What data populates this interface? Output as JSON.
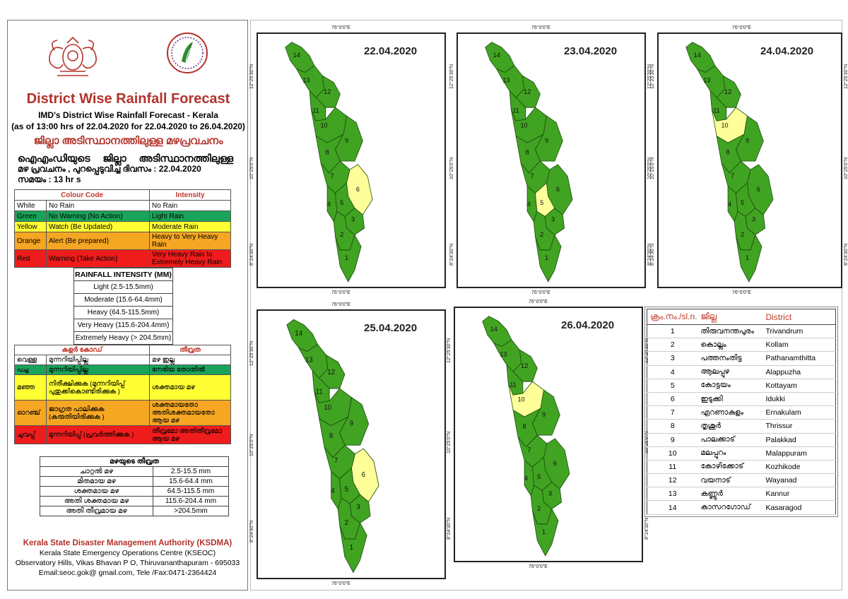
{
  "header": {
    "title": "District Wise Rainfall Forecast",
    "subtitle_line1": "IMD's District Wise Rainfall Forecast - Kerala",
    "subtitle_line2": "(as of 13:00 hrs of 22.04.2020  for 22.04.2020  to 26.04.2020)",
    "title_ml": "ജില്ലാ അടിസ്ഥാനത്തിലുള്ള മഴപ്രവചനം",
    "issued_line1": "ഐഎംഡിയുടെ ജില്ലാ അടിസ്ഥാനത്തിലുള്ള",
    "issued_line2": "മഴ പ്രവചനം ,  പുറപ്പെടുവിച്ച   ദിവസം : 22.04.2020",
    "issued_line3": "സമയം :  13   hr s"
  },
  "colour_code": {
    "header_code": "Colour Code",
    "header_intensity": "Intensity",
    "rows": [
      {
        "colour": "White",
        "code": "No Rain",
        "intensity": "No Rain",
        "bg": "#ffffff"
      },
      {
        "colour": "Green",
        "code": "No Warning (No Action)",
        "intensity": "Light Rain",
        "bg": "#1aa35a"
      },
      {
        "colour": "Yellow",
        "code": "Watch (Be Updated)",
        "intensity": "Moderate Rain",
        "bg": "#ffff33"
      },
      {
        "colour": "Orange",
        "code": "Alert (Be prepared)",
        "intensity": "Heavy to Very Heavy Rain",
        "bg": "#f5a623"
      },
      {
        "colour": "Red",
        "code": "Warning (Take Action)",
        "intensity": "Very Heavy Rain to Extremely Heavy Rain",
        "bg": "#ee1c1c"
      }
    ]
  },
  "rainfall_intensity": {
    "header": "RAINFALL INTENSITY (MM)",
    "rows": [
      "Light (2.5-15.5mm)",
      "Moderate (15.6-64.4mm)",
      "Heavy (64.5-115.5mm)",
      "Very Heavy (115.6-204.4mm)",
      "Extremely Heavy (> 204.5mm)"
    ]
  },
  "colour_code_ml": {
    "header_code": "കളർ കോഡ്",
    "header_intensity": "തീവ്രത",
    "rows": [
      {
        "colour": "വെള്ള",
        "code": "മുന്നറിയിപ്പില്ല",
        "intensity": "മഴ ഇല്ല",
        "bg": "#ffffff"
      },
      {
        "colour": "പച്ച",
        "code": "മുന്നറിയിപ്പില്ല",
        "intensity": "നേരിയ തോതിൽ",
        "bg": "#1aa35a"
      },
      {
        "colour": "മഞ്ഞ",
        "code": "നിരീക്ഷിക്കുക (മുന്നറിയിപ്പ് പുതുക്കികൊണ്ടിരിക്കുക )",
        "intensity": "ശക്തമായ മഴ",
        "bg": "#ffff33"
      },
      {
        "colour": "ഓറഞ്ച്",
        "code": "ജാഗ്രത പാലിക്കുക (കരുതിയിരിക്കുക )",
        "intensity": "ശക്തമായതോ അതിശക്തമായതോ ആയ മഴ",
        "bg": "#f5a623"
      },
      {
        "colour": "ചുവപ്പ്",
        "code": "മുന്നറിയിപ്പ് (പ്രവർത്തിക്കുക )",
        "intensity": "തീവ്രമോ അതിതീവ്രമോ ആയ മഴ",
        "bg": "#ee1c1c"
      }
    ]
  },
  "rainfall_intensity_ml": {
    "header": "മഴയുടെ തീവ്രത",
    "rows": [
      {
        "label": "ചാറ്റൽ മഴ",
        "value": "2.5-15.5 mm"
      },
      {
        "label": "മിതമായ മഴ",
        "value": "15.6-64.4 mm"
      },
      {
        "label": "ശക്തമായ മഴ",
        "value": "64.5-115.5 mm"
      },
      {
        "label": "അതി ശക്തമായ മഴ",
        "value": "115.6-204.4 mm"
      },
      {
        "label": "അതി തീവ്രമായ മഴ",
        "value": ">204.5mm"
      }
    ]
  },
  "footer": {
    "org": "Kerala State Disaster Management Authority (KSDMA)",
    "line2": "Kerala State Emergency Operations Centre (KSEOC)",
    "line3": "Observatory Hills, Vikas Bhavan P O, Thiruvananthapuram - 695033",
    "line4": "Email:seoc.gok@ gmail.com, Tele /Fax:0471-2364424"
  },
  "map_labels": {
    "lon": "76°0'0\"E",
    "lat_n": "12°25'30\"N",
    "lat_m": "10°25'0\"N",
    "lat_s": "8°24'30\"N"
  },
  "maps": [
    {
      "date": "22.04.2020",
      "yellow_districts": [
        6
      ]
    },
    {
      "date": "23.04.2020",
      "yellow_districts": [
        5
      ]
    },
    {
      "date": "24.04.2020",
      "yellow_districts": [
        10
      ]
    },
    {
      "date": "25.04.2020",
      "yellow_districts": [
        6
      ]
    },
    {
      "date": "26.04.2020",
      "yellow_districts": [
        10
      ]
    }
  ],
  "colors": {
    "green": "#41a322",
    "yellow": "#ffff9a",
    "border": "#1b4d0f"
  },
  "district_table": {
    "header_no": "ക്രം.നം./sl.n.",
    "header_ml": "ജില്ല",
    "header_en": "District",
    "rows": [
      {
        "no": "1",
        "ml": "തിരുവനന്തപുരം",
        "en": "Trivandrum"
      },
      {
        "no": "2",
        "ml": "കൊല്ലം",
        "en": "Kollam"
      },
      {
        "no": "3",
        "ml": "പത്തനംതിട്ട",
        "en": "Pathanamthitta"
      },
      {
        "no": "4",
        "ml": "ആലപ്പുഴ",
        "en": "Alappuzha"
      },
      {
        "no": "5",
        "ml": "കോട്ടയം",
        "en": "Kottayam"
      },
      {
        "no": "6",
        "ml": "ഇടുക്കി",
        "en": "Idukki"
      },
      {
        "no": "7",
        "ml": "എറണാകുളം",
        "en": "Ernakulam"
      },
      {
        "no": "8",
        "ml": "തൃശൂർ",
        "en": "Thrissur"
      },
      {
        "no": "9",
        "ml": "പാലക്കാട്",
        "en": "Palakkad"
      },
      {
        "no": "10",
        "ml": "മലപ്പുറം",
        "en": "Malappuram"
      },
      {
        "no": "11",
        "ml": "കോഴിക്കോട്",
        "en": "Kozhikode"
      },
      {
        "no": "12",
        "ml": "വയനാട്",
        "en": "Wayanad"
      },
      {
        "no": "13",
        "ml": "കണ്ണൂർ",
        "en": "Kannur"
      },
      {
        "no": "14",
        "ml": "കാസറഗോഡ്",
        "en": "Kasaragod"
      }
    ]
  }
}
